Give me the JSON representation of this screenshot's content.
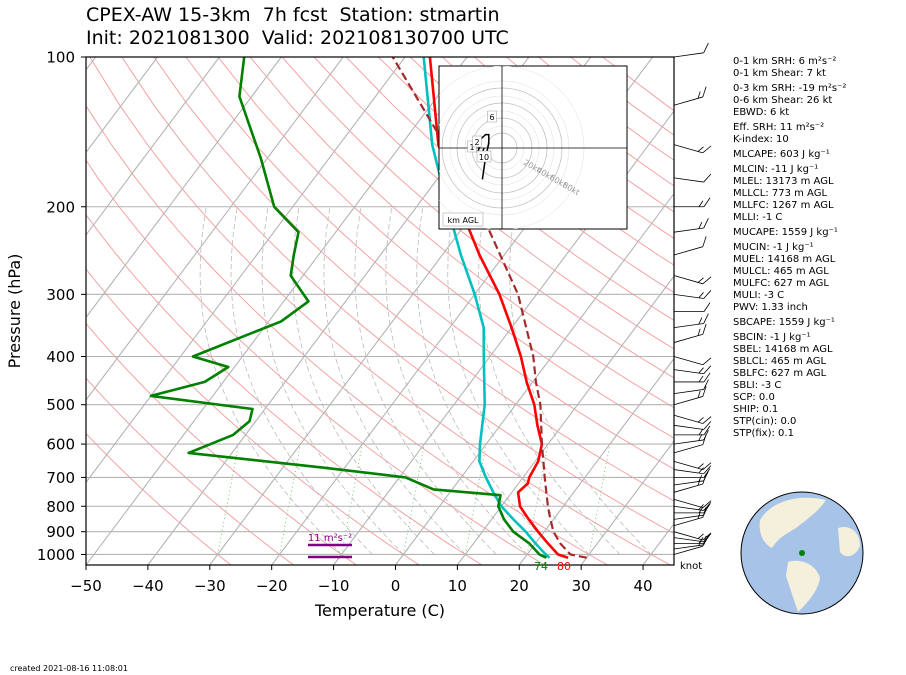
{
  "title_line1": "CPEX-AW 15-3km  7h fcst  Station: stmartin",
  "title_line2": "Init: 2021081300  Valid: 202108130700 UTC",
  "created": "created 2021-08-16 11:08:01",
  "stats": [
    "0-1 km SRH: 6 m²s⁻²",
    "0-1 km Shear: 7 kt",
    "0-3 km SRH: -19 m²s⁻²",
    "0-6 km Shear: 26 kt",
    "EBWD: 6 kt",
    "Eff. SRH: 11 m²s⁻²",
    "K-index: 10",
    "MLCAPE: 603 J kg⁻¹",
    "MLCIN: -11 J kg⁻¹",
    "MLEL: 13173 m AGL",
    "MLLCL: 773 m AGL",
    "MLLFC: 1267 m AGL",
    "MLLI: -1 C",
    "MUCAPE: 1559 J kg⁻¹",
    "MUCIN: -1 J kg⁻¹",
    "MUEL: 14168 m AGL",
    "MULCL: 465 m AGL",
    "MULFC: 627 m AGL",
    "MULI: -3 C",
    "PWV: 1.33 inch",
    "SBCAPE: 1559 J kg⁻¹",
    "SBCIN: -1 J kg⁻¹",
    "SBEL: 14168 m AGL",
    "SBLCL: 465 m AGL",
    "SBLFC: 627 m AGL",
    "SBLI: -3 C",
    "SCP: 0.0",
    "SHIP: 0.1",
    "STP(cin): 0.0",
    "STP(fix): 0.1"
  ],
  "chart_data": {
    "type": "line",
    "xlabel": "Temperature (C)",
    "ylabel": "Pressure (hPa)",
    "xlim": [
      -50,
      45
    ],
    "ylim": [
      1050,
      100
    ],
    "y_scale": "log",
    "xticks": [
      -50,
      -40,
      -30,
      -20,
      -10,
      0,
      10,
      20,
      30,
      40
    ],
    "yticks": [
      100,
      200,
      300,
      400,
      500,
      600,
      700,
      800,
      900,
      1000
    ],
    "skew": "skew-T log-p",
    "grid": true,
    "series": [
      {
        "color": "#ff0000",
        "points": [
          [
            1015,
            27
          ],
          [
            1000,
            25
          ],
          [
            950,
            22
          ],
          [
            900,
            19
          ],
          [
            850,
            16
          ],
          [
            800,
            13
          ],
          [
            750,
            11
          ],
          [
            720,
            11.5
          ],
          [
            700,
            11
          ],
          [
            650,
            10.5
          ],
          [
            600,
            9
          ],
          [
            550,
            6
          ],
          [
            500,
            3
          ],
          [
            450,
            -1
          ],
          [
            400,
            -5
          ],
          [
            350,
            -10
          ],
          [
            300,
            -16
          ],
          [
            250,
            -24
          ],
          [
            200,
            -33
          ],
          [
            150,
            -44
          ],
          [
            100,
            -56
          ]
        ]
      },
      {
        "color": "#00c0c0",
        "points": [
          [
            1015,
            24
          ],
          [
            1000,
            23
          ],
          [
            950,
            20
          ],
          [
            900,
            17
          ],
          [
            850,
            13.5
          ],
          [
            800,
            10
          ],
          [
            750,
            7
          ],
          [
            700,
            4
          ],
          [
            650,
            1
          ],
          [
            600,
            -1
          ],
          [
            500,
            -5
          ],
          [
            400,
            -11
          ],
          [
            350,
            -14.5
          ],
          [
            300,
            -20
          ],
          [
            250,
            -27
          ],
          [
            200,
            -35
          ],
          [
            150,
            -45
          ],
          [
            100,
            -57
          ]
        ]
      },
      {
        "color": "#008000",
        "points": [
          [
            1015,
            23.5
          ],
          [
            1000,
            22
          ],
          [
            950,
            19
          ],
          [
            900,
            15
          ],
          [
            850,
            12
          ],
          [
            800,
            9.5
          ],
          [
            760,
            8.5
          ],
          [
            740,
            -3
          ],
          [
            700,
            -9
          ],
          [
            670,
            -23
          ],
          [
            625,
            -47
          ],
          [
            575,
            -42
          ],
          [
            540,
            -41
          ],
          [
            510,
            -42
          ],
          [
            480,
            -60
          ],
          [
            450,
            -53
          ],
          [
            420,
            -51
          ],
          [
            400,
            -58
          ],
          [
            340,
            -48
          ],
          [
            310,
            -46
          ],
          [
            275,
            -52
          ],
          [
            250,
            -54
          ],
          [
            225,
            -56
          ],
          [
            200,
            -63
          ],
          [
            160,
            -71
          ],
          [
            120,
            -82
          ],
          [
            100,
            -86
          ]
        ]
      },
      {
        "color": "#a52a2a",
        "style": "dashed",
        "points": [
          [
            1015,
            30
          ],
          [
            1000,
            27
          ],
          [
            950,
            24
          ],
          [
            900,
            21.5
          ],
          [
            850,
            19.5
          ],
          [
            800,
            17.5
          ],
          [
            700,
            13.5
          ],
          [
            600,
            9
          ],
          [
            500,
            4
          ],
          [
            450,
            0.5
          ],
          [
            400,
            -3
          ],
          [
            300,
            -13
          ],
          [
            200,
            -30
          ],
          [
            150,
            -43
          ],
          [
            100,
            -62
          ]
        ]
      }
    ],
    "annotations": [
      "11 m²s⁻²",
      "74",
      "80",
      "knot"
    ],
    "hodograph": {
      "rings_kt": [
        20,
        40,
        60,
        80
      ],
      "ring_labels": [
        "20kt",
        "40kt",
        "60kt",
        "80kt"
      ],
      "height_labels": [
        "1",
        "2",
        "6",
        "10"
      ],
      "legend": "km AGL",
      "points": [
        [
          0,
          0
        ],
        [
          -2,
          -4
        ],
        [
          -4,
          -2
        ],
        [
          -3,
          0
        ],
        [
          -2,
          4
        ],
        [
          1,
          6
        ],
        [
          3,
          6
        ],
        [
          3,
          2
        ],
        [
          1,
          -4
        ],
        [
          -1,
          -14
        ]
      ]
    }
  }
}
